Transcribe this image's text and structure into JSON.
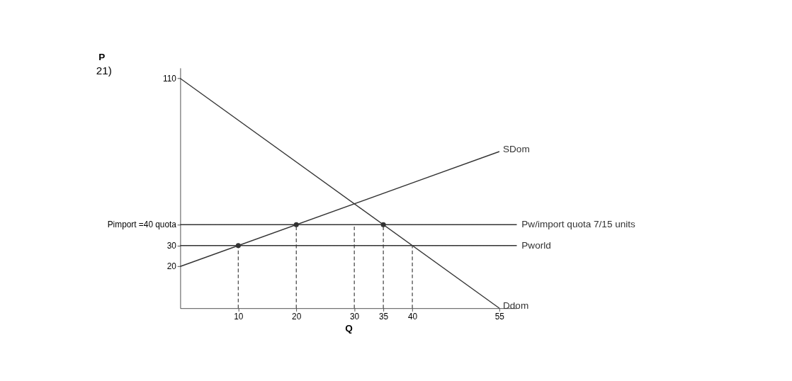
{
  "chart_data": {
    "type": "line",
    "xlabel": "Q",
    "ylabel": "P",
    "annotations": [
      "21)"
    ],
    "xlim": [
      0,
      58
    ],
    "ylim": [
      0,
      115
    ],
    "xticks": [
      10,
      20,
      30,
      35,
      40,
      55
    ],
    "yticks": [
      20,
      30,
      {
        "value": 40,
        "label": "Pimport =40 quota"
      },
      110
    ],
    "series": [
      {
        "name": "SDom",
        "color": "#333333",
        "x": [
          0,
          55
        ],
        "values": [
          20,
          75
        ]
      },
      {
        "name": "Ddom",
        "color": "#333333",
        "x": [
          0,
          55
        ],
        "values": [
          110,
          0
        ]
      },
      {
        "type": "line",
        "line_style": "dashed",
        "color": "#555555",
        "x": [
          10,
          10
        ],
        "values": [
          0,
          30
        ]
      },
      {
        "type": "line",
        "line_style": "dashed",
        "color": "#555555",
        "x": [
          20,
          20
        ],
        "values": [
          0,
          40
        ]
      },
      {
        "type": "line",
        "line_style": "dashed",
        "color": "#555555",
        "x": [
          30,
          30
        ],
        "values": [
          0,
          40
        ]
      },
      {
        "type": "line",
        "line_style": "dashed",
        "color": "#555555",
        "x": [
          35,
          35
        ],
        "values": [
          0,
          40
        ]
      },
      {
        "type": "line",
        "line_style": "dashed",
        "color": "#555555",
        "x": [
          40,
          40
        ],
        "values": [
          0,
          30
        ]
      },
      {
        "type": "scatter",
        "marker": "circle",
        "color": "#333333",
        "x": [
          10,
          20,
          35
        ],
        "values": [
          30,
          40,
          40
        ]
      }
    ],
    "ref_lines": [
      {
        "axis": "y",
        "value": 40,
        "label": "Pw/import quota 7/15 units",
        "color": "#333333"
      },
      {
        "axis": "y",
        "value": 30,
        "label": "Pworld",
        "color": "#333333"
      }
    ],
    "grid": false
  }
}
